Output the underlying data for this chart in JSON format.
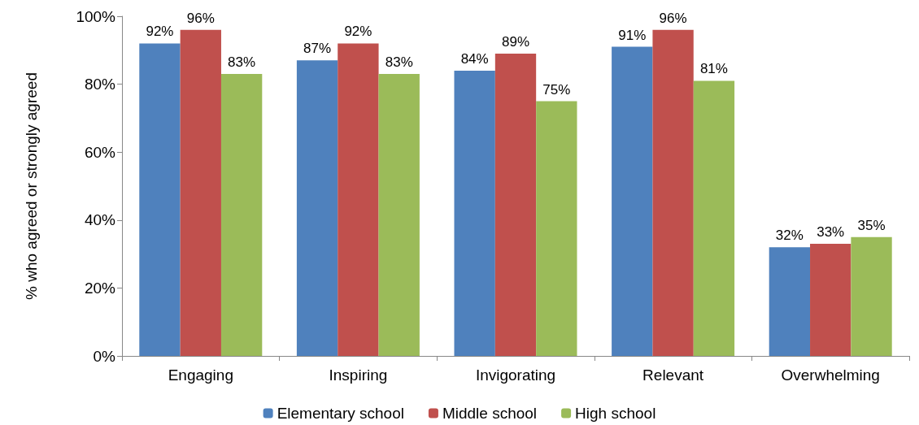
{
  "chart_data": {
    "type": "bar",
    "ylabel": "% who agreed or strongly agreed",
    "categories": [
      "Engaging",
      "Inspiring",
      "Invigorating",
      "Relevant",
      "Overwhelming"
    ],
    "series": [
      {
        "name": "Elementary school",
        "color": "#4f81bd",
        "values": [
          92,
          87,
          84,
          91,
          32
        ],
        "value_labels": [
          "92%",
          "87%",
          "84%",
          "91%",
          "32%"
        ]
      },
      {
        "name": "Middle school",
        "color": "#c0504d",
        "values": [
          96,
          92,
          89,
          96,
          33
        ],
        "value_labels": [
          "96%",
          "92%",
          "89%",
          "96%",
          "33%"
        ]
      },
      {
        "name": "High school",
        "color": "#9bbb59",
        "values": [
          83,
          83,
          75,
          81,
          35
        ],
        "value_labels": [
          "83%",
          "83%",
          "75%",
          "81%",
          "35%"
        ]
      }
    ],
    "ylim": [
      0,
      100
    ],
    "yticks": [
      {
        "value": 0,
        "label": "0%"
      },
      {
        "value": 20,
        "label": "20%"
      },
      {
        "value": 40,
        "label": "40%"
      },
      {
        "value": 60,
        "label": "60%"
      },
      {
        "value": 80,
        "label": "80%"
      },
      {
        "value": 100,
        "label": "100%"
      }
    ],
    "grid": false,
    "legend": "bottom"
  }
}
